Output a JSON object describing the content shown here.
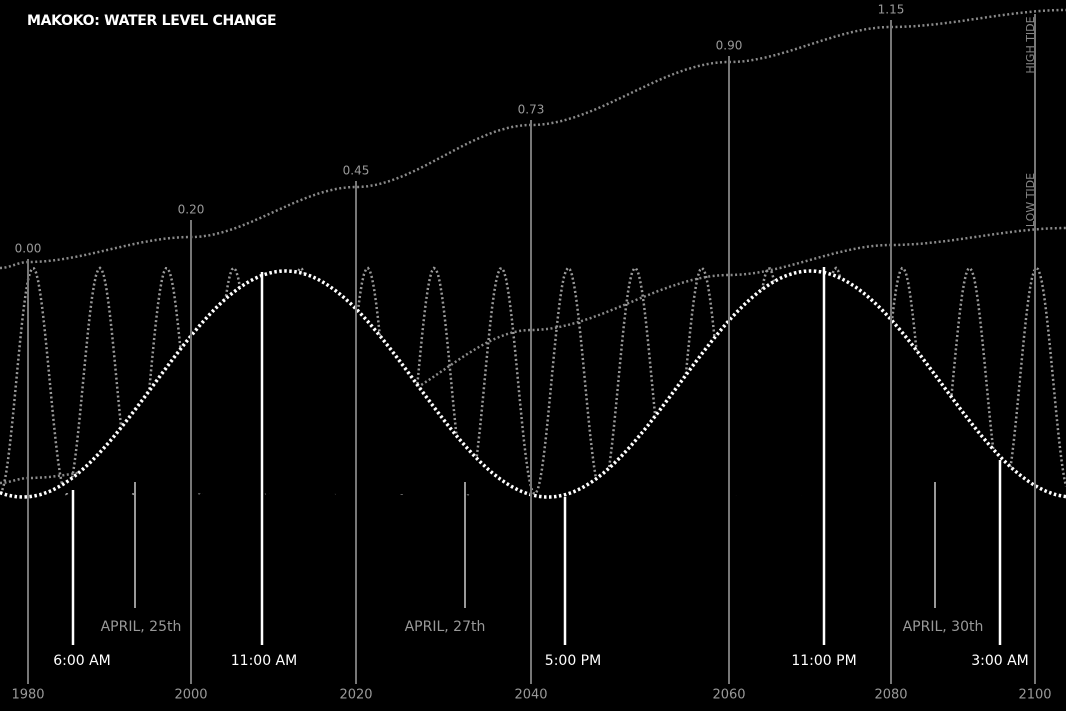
{
  "title": "MAKOKO: WATER LEVEL CHANGE",
  "years": [
    "1980",
    "2000",
    "2020",
    "2040",
    "2060",
    "2080",
    "2100"
  ],
  "levels": [
    "0.00",
    "0.20",
    "0.45",
    "0.73",
    "0.90",
    "1.15"
  ],
  "tide_labels": [
    "HIGH TIDE",
    "LOW TIDE"
  ],
  "times": [
    "6:00 AM",
    "11:00 AM",
    "5:00 PM",
    "11:00 PM",
    "3:00 AM"
  ],
  "dates": [
    "APRIL, 25th",
    "APRIL, 27th",
    "APRIL, 30th"
  ]
}
